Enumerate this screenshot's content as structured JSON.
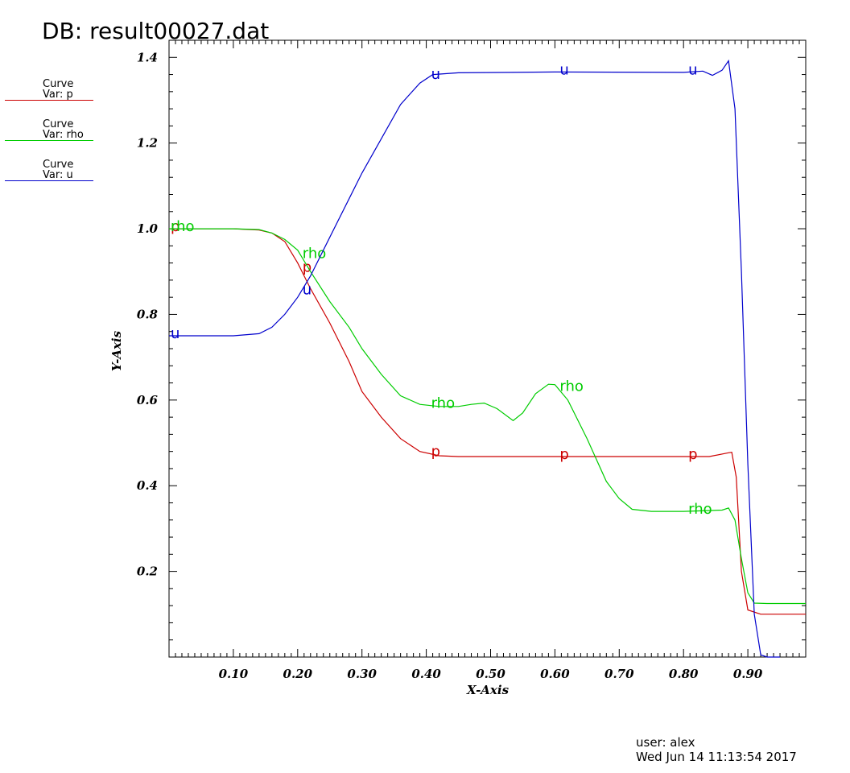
{
  "header": {
    "db_title": "DB: result00027.dat"
  },
  "legend": [
    {
      "line1": "Curve",
      "line2": "Var: p",
      "color": "#cc0000"
    },
    {
      "line1": "Curve",
      "line2": "Var: rho",
      "color": "#00cc00"
    },
    {
      "line1": "Curve",
      "line2": "Var: u",
      "color": "#0000cc"
    }
  ],
  "footer": {
    "user": "user: alex",
    "timestamp": "Wed Jun 14 11:13:54 2017"
  },
  "chart_data": {
    "type": "line",
    "xlabel": "X-Axis",
    "ylabel": "Y-Axis",
    "xlim": [
      0.0,
      0.99
    ],
    "ylim": [
      0.0,
      1.44
    ],
    "xticks": [
      0.1,
      0.2,
      0.3,
      0.4,
      0.5,
      0.6,
      0.7,
      0.8,
      0.9
    ],
    "xtick_labels": [
      "0.10",
      "0.20",
      "0.30",
      "0.40",
      "0.50",
      "0.60",
      "0.70",
      "0.80",
      "0.90"
    ],
    "yticks": [
      0.2,
      0.4,
      0.6,
      0.8,
      1.0,
      1.2,
      1.4
    ],
    "ytick_labels": [
      "0.2",
      "0.4",
      "0.6",
      "0.8",
      "1.0",
      "1.2",
      "1.4"
    ],
    "grid": false,
    "legend_position": "left",
    "series": [
      {
        "name": "p",
        "color": "#cc0000",
        "marker_text": "p",
        "markers_x": [
          0.0,
          0.205,
          0.405,
          0.605,
          0.805
        ],
        "points": [
          [
            0.0,
            1.0
          ],
          [
            0.1,
            1.0
          ],
          [
            0.14,
            0.997
          ],
          [
            0.16,
            0.99
          ],
          [
            0.18,
            0.97
          ],
          [
            0.2,
            0.92
          ],
          [
            0.22,
            0.86
          ],
          [
            0.25,
            0.78
          ],
          [
            0.28,
            0.69
          ],
          [
            0.3,
            0.62
          ],
          [
            0.33,
            0.56
          ],
          [
            0.36,
            0.51
          ],
          [
            0.39,
            0.48
          ],
          [
            0.42,
            0.47
          ],
          [
            0.45,
            0.468
          ],
          [
            0.6,
            0.468
          ],
          [
            0.8,
            0.468
          ],
          [
            0.84,
            0.468
          ],
          [
            0.87,
            0.477
          ],
          [
            0.875,
            0.478
          ],
          [
            0.882,
            0.42
          ],
          [
            0.89,
            0.2
          ],
          [
            0.9,
            0.11
          ],
          [
            0.92,
            0.1
          ],
          [
            0.99,
            0.1
          ]
        ]
      },
      {
        "name": "rho",
        "color": "#00cc00",
        "marker_text": "rho",
        "markers_x": [
          0.0,
          0.205,
          0.405,
          0.605,
          0.805
        ],
        "points": [
          [
            0.0,
            1.0
          ],
          [
            0.1,
            1.0
          ],
          [
            0.14,
            0.998
          ],
          [
            0.16,
            0.99
          ],
          [
            0.18,
            0.975
          ],
          [
            0.2,
            0.95
          ],
          [
            0.22,
            0.9
          ],
          [
            0.25,
            0.83
          ],
          [
            0.28,
            0.77
          ],
          [
            0.3,
            0.72
          ],
          [
            0.33,
            0.66
          ],
          [
            0.36,
            0.61
          ],
          [
            0.39,
            0.59
          ],
          [
            0.42,
            0.585
          ],
          [
            0.45,
            0.585
          ],
          [
            0.47,
            0.59
          ],
          [
            0.49,
            0.593
          ],
          [
            0.51,
            0.58
          ],
          [
            0.535,
            0.552
          ],
          [
            0.55,
            0.57
          ],
          [
            0.57,
            0.615
          ],
          [
            0.59,
            0.637
          ],
          [
            0.6,
            0.636
          ],
          [
            0.62,
            0.6
          ],
          [
            0.65,
            0.51
          ],
          [
            0.68,
            0.41
          ],
          [
            0.7,
            0.37
          ],
          [
            0.72,
            0.345
          ],
          [
            0.75,
            0.34
          ],
          [
            0.8,
            0.34
          ],
          [
            0.86,
            0.343
          ],
          [
            0.87,
            0.348
          ],
          [
            0.88,
            0.32
          ],
          [
            0.89,
            0.23
          ],
          [
            0.9,
            0.15
          ],
          [
            0.91,
            0.126
          ],
          [
            0.93,
            0.125
          ],
          [
            0.99,
            0.125
          ]
        ]
      },
      {
        "name": "u",
        "color": "#0000cc",
        "marker_text": "u",
        "markers_x": [
          0.0,
          0.205,
          0.405,
          0.605,
          0.805
        ],
        "points": [
          [
            0.0,
            0.75
          ],
          [
            0.1,
            0.75
          ],
          [
            0.14,
            0.755
          ],
          [
            0.16,
            0.77
          ],
          [
            0.18,
            0.8
          ],
          [
            0.2,
            0.84
          ],
          [
            0.22,
            0.89
          ],
          [
            0.25,
            0.98
          ],
          [
            0.28,
            1.07
          ],
          [
            0.3,
            1.13
          ],
          [
            0.33,
            1.21
          ],
          [
            0.36,
            1.29
          ],
          [
            0.39,
            1.34
          ],
          [
            0.41,
            1.36
          ],
          [
            0.45,
            1.364
          ],
          [
            0.6,
            1.366
          ],
          [
            0.8,
            1.365
          ],
          [
            0.83,
            1.368
          ],
          [
            0.845,
            1.358
          ],
          [
            0.86,
            1.37
          ],
          [
            0.87,
            1.392
          ],
          [
            0.88,
            1.28
          ],
          [
            0.89,
            0.9
          ],
          [
            0.9,
            0.45
          ],
          [
            0.91,
            0.1
          ],
          [
            0.92,
            0.005
          ],
          [
            0.93,
            0.0
          ],
          [
            0.95,
            0.0
          ]
        ]
      }
    ]
  }
}
